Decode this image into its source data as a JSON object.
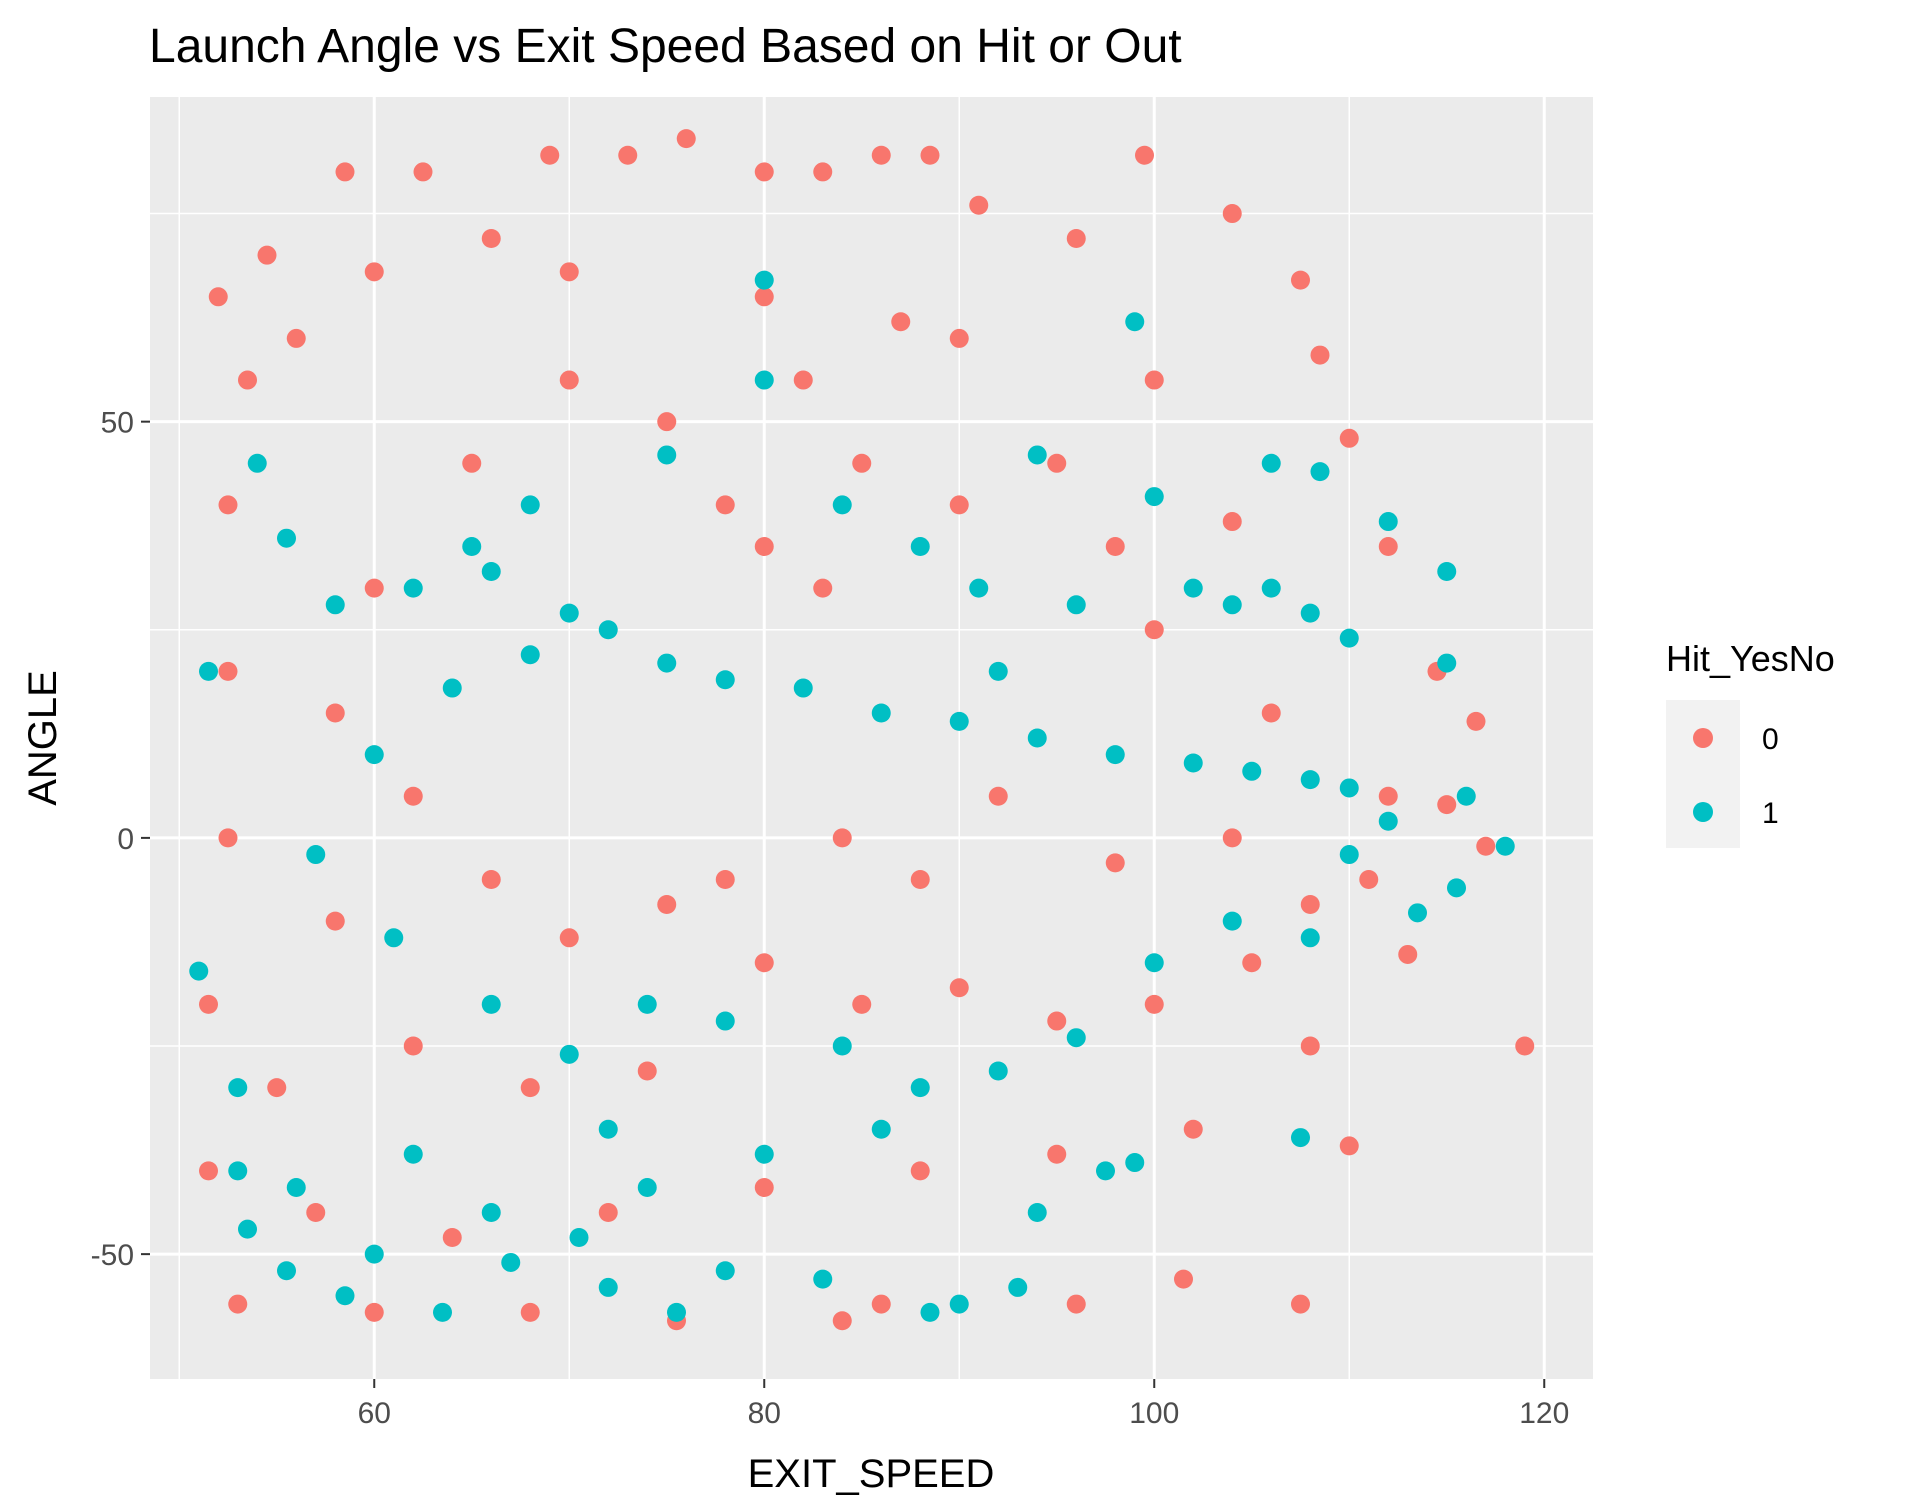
{
  "chart_data": {
    "type": "scatter",
    "title": "Launch Angle vs Exit Speed Based on Hit or Out",
    "xlabel": "EXIT_SPEED",
    "ylabel": "ANGLE",
    "xlim": [
      48.5,
      122.5
    ],
    "ylim": [
      -65,
      89
    ],
    "x_ticks": [
      60,
      80,
      100,
      120
    ],
    "y_ticks": [
      -50,
      0,
      50
    ],
    "x_tick_labels": [
      "60",
      "80",
      "100",
      "120"
    ],
    "y_tick_labels": [
      "-50",
      "0",
      "50"
    ],
    "grid": true,
    "legend": {
      "title": "Hit_YesNo",
      "position": "right",
      "entries": [
        {
          "label": "0",
          "color": "#F8766D"
        },
        {
          "label": "1",
          "color": "#00BFC4"
        }
      ]
    },
    "series": [
      {
        "name": "0",
        "color": "#F8766D",
        "points": [
          [
            52.0,
            65
          ],
          [
            54.5,
            70
          ],
          [
            56.0,
            60
          ],
          [
            58.5,
            80
          ],
          [
            62.5,
            80
          ],
          [
            66.0,
            72
          ],
          [
            69.0,
            82
          ],
          [
            73.0,
            82
          ],
          [
            76.0,
            84
          ],
          [
            80.0,
            80
          ],
          [
            83.0,
            80
          ],
          [
            86.0,
            82
          ],
          [
            88.5,
            82
          ],
          [
            91.0,
            76
          ],
          [
            96.0,
            72
          ],
          [
            99.5,
            82
          ],
          [
            104.0,
            75
          ],
          [
            107.5,
            67
          ],
          [
            108.5,
            58
          ],
          [
            110.0,
            48
          ],
          [
            112.0,
            35
          ],
          [
            114.5,
            20
          ],
          [
            116.5,
            14
          ],
          [
            115.0,
            4
          ],
          [
            117.0,
            -1
          ],
          [
            119.0,
            -25
          ],
          [
            113.0,
            -14
          ],
          [
            110.0,
            -37
          ],
          [
            107.5,
            -56
          ],
          [
            101.5,
            -53
          ],
          [
            96.0,
            -56
          ],
          [
            86.0,
            -56
          ],
          [
            84.0,
            -58
          ],
          [
            75.5,
            -58
          ],
          [
            68.0,
            -57
          ],
          [
            60.0,
            -57
          ],
          [
            53.0,
            -56
          ],
          [
            51.5,
            -40
          ],
          [
            51.5,
            -20
          ],
          [
            52.5,
            0
          ],
          [
            52.5,
            20
          ],
          [
            52.5,
            40
          ],
          [
            53.5,
            55
          ],
          [
            60.0,
            68
          ],
          [
            70.0,
            68
          ],
          [
            80.0,
            65
          ],
          [
            90.0,
            60
          ],
          [
            100.0,
            55
          ],
          [
            75.0,
            50
          ],
          [
            85.0,
            45
          ],
          [
            80.0,
            35
          ],
          [
            90.0,
            40
          ],
          [
            95.0,
            45
          ],
          [
            70.0,
            55
          ],
          [
            65.0,
            45
          ],
          [
            60.0,
            30
          ],
          [
            58.0,
            15
          ],
          [
            62.0,
            5
          ],
          [
            66.0,
            -5
          ],
          [
            70.0,
            -12
          ],
          [
            75.0,
            -8
          ],
          [
            80.0,
            -15
          ],
          [
            85.0,
            -20
          ],
          [
            90.0,
            -18
          ],
          [
            95.0,
            -22
          ],
          [
            100.0,
            -20
          ],
          [
            105.0,
            -15
          ],
          [
            108.0,
            -25
          ],
          [
            102.0,
            -35
          ],
          [
            95.0,
            -38
          ],
          [
            88.0,
            -40
          ],
          [
            80.0,
            -42
          ],
          [
            72.0,
            -45
          ],
          [
            64.0,
            -48
          ],
          [
            57.0,
            -45
          ],
          [
            55.0,
            -30
          ],
          [
            58.0,
            -10
          ],
          [
            62.0,
            -25
          ],
          [
            68.0,
            -30
          ],
          [
            74.0,
            -28
          ],
          [
            78.0,
            -5
          ],
          [
            84.0,
            0
          ],
          [
            88.0,
            -5
          ],
          [
            92.0,
            5
          ],
          [
            98.0,
            -3
          ],
          [
            104.0,
            0
          ],
          [
            108.0,
            -8
          ],
          [
            111.0,
            -5
          ],
          [
            112.0,
            5
          ],
          [
            106.0,
            15
          ],
          [
            100.0,
            25
          ],
          [
            104.0,
            38
          ],
          [
            98.0,
            35
          ],
          [
            82.0,
            55
          ],
          [
            87.0,
            62
          ],
          [
            78.0,
            40
          ],
          [
            83.0,
            30
          ]
        ]
      },
      {
        "name": "1",
        "color": "#00BFC4",
        "points": [
          [
            51.5,
            20
          ],
          [
            51.0,
            -16
          ],
          [
            53.0,
            -30
          ],
          [
            53.0,
            -40
          ],
          [
            53.5,
            -47
          ],
          [
            55.5,
            -52
          ],
          [
            58.5,
            -55
          ],
          [
            63.5,
            -57
          ],
          [
            67.0,
            -51
          ],
          [
            70.5,
            -48
          ],
          [
            72.0,
            -54
          ],
          [
            75.5,
            -57
          ],
          [
            78.0,
            -52
          ],
          [
            83.0,
            -53
          ],
          [
            88.5,
            -57
          ],
          [
            90.0,
            -56
          ],
          [
            93.0,
            -54
          ],
          [
            94.0,
            -45
          ],
          [
            97.5,
            -40
          ],
          [
            99.0,
            -39
          ],
          [
            107.5,
            -36
          ],
          [
            113.5,
            -9
          ],
          [
            115.5,
            -6
          ],
          [
            118.0,
            -1
          ],
          [
            116.0,
            5
          ],
          [
            115.0,
            21
          ],
          [
            115.0,
            32
          ],
          [
            112.0,
            38
          ],
          [
            108.5,
            44
          ],
          [
            106.0,
            45
          ],
          [
            100.0,
            41
          ],
          [
            94.0,
            46
          ],
          [
            99.0,
            62
          ],
          [
            80.0,
            67
          ],
          [
            80.0,
            55
          ],
          [
            75.0,
            46
          ],
          [
            68.0,
            40
          ],
          [
            62.0,
            30
          ],
          [
            58.0,
            28
          ],
          [
            55.5,
            36
          ],
          [
            54.0,
            45
          ],
          [
            65.0,
            35
          ],
          [
            66.0,
            32
          ],
          [
            70.0,
            27
          ],
          [
            72.0,
            25
          ],
          [
            75.0,
            21
          ],
          [
            78.0,
            19
          ],
          [
            82.0,
            18
          ],
          [
            86.0,
            15
          ],
          [
            90.0,
            14
          ],
          [
            94.0,
            12
          ],
          [
            98.0,
            10
          ],
          [
            102.0,
            9
          ],
          [
            105.0,
            8
          ],
          [
            108.0,
            7
          ],
          [
            110.0,
            6
          ],
          [
            104.0,
            28
          ],
          [
            106.0,
            30
          ],
          [
            108.0,
            27
          ],
          [
            110.0,
            24
          ],
          [
            102.0,
            30
          ],
          [
            96.0,
            28
          ],
          [
            92.0,
            20
          ],
          [
            68.0,
            22
          ],
          [
            64.0,
            18
          ],
          [
            60.0,
            10
          ],
          [
            57.0,
            -2
          ],
          [
            61.0,
            -12
          ],
          [
            66.0,
            -20
          ],
          [
            70.0,
            -26
          ],
          [
            74.0,
            -20
          ],
          [
            78.0,
            -22
          ],
          [
            84.0,
            -25
          ],
          [
            88.0,
            -30
          ],
          [
            92.0,
            -28
          ],
          [
            96.0,
            -24
          ],
          [
            100.0,
            -15
          ],
          [
            104.0,
            -10
          ],
          [
            108.0,
            -12
          ],
          [
            110.0,
            -2
          ],
          [
            112.0,
            2
          ],
          [
            86.0,
            -35
          ],
          [
            80.0,
            -38
          ],
          [
            74.0,
            -42
          ],
          [
            66.0,
            -45
          ],
          [
            60.0,
            -50
          ],
          [
            56.0,
            -42
          ],
          [
            62.0,
            -38
          ],
          [
            72.0,
            -35
          ],
          [
            91.0,
            30
          ],
          [
            84.0,
            40
          ],
          [
            88.0,
            35
          ]
        ]
      }
    ]
  }
}
